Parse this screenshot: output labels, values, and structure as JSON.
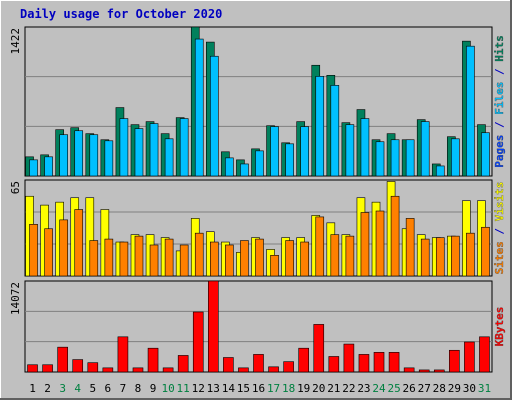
{
  "chart_data": [
    {
      "type": "bar",
      "title": "Daily usage for October 2020",
      "ylim": [
        0,
        1422
      ],
      "yticks": [
        1422
      ],
      "legend_only": [
        {
          "name": "Pages",
          "color": "#0040ff"
        }
      ],
      "legend_separator": "/",
      "series": [
        {
          "name": "Files",
          "color": "#00c0ff",
          "values": [
            154,
            183,
            394,
            432,
            394,
            336,
            548,
            452,
            500,
            355,
            548,
            1307,
            1143,
            173,
            115,
            240,
            471,
            307,
            471,
            951,
            865,
            490,
            548,
            327,
            346,
            346,
            519,
            96,
            355,
            1239,
            413
          ]
        },
        {
          "name": "Hits",
          "color": "#00805c",
          "values": [
            183,
            202,
            442,
            461,
            404,
            346,
            653,
            490,
            519,
            404,
            557,
            1422,
            1278,
            231,
            154,
            259,
            480,
            317,
            519,
            1057,
            961,
            509,
            634,
            346,
            404,
            346,
            538,
            115,
            375,
            1287,
            490
          ]
        }
      ]
    },
    {
      "type": "bar",
      "ylim": [
        0,
        65
      ],
      "yticks": [
        65
      ],
      "legend_separator": "/",
      "series": [
        {
          "name": "Sites",
          "color": "#ff8000",
          "values": [
            35,
            32,
            38,
            45,
            24,
            25,
            23,
            27,
            21,
            25,
            21,
            29,
            23,
            21,
            24,
            25,
            14,
            24,
            23,
            40,
            28,
            27,
            43,
            44,
            54,
            39,
            25,
            26,
            27,
            29,
            33
          ]
        },
        {
          "name": "Visits",
          "color": "#ffff00",
          "values": [
            54,
            48,
            50,
            53,
            53,
            45,
            23,
            28,
            28,
            26,
            17,
            39,
            30,
            23,
            16,
            26,
            18,
            26,
            26,
            41,
            36,
            28,
            53,
            50,
            64,
            32,
            28,
            26,
            27,
            51,
            51
          ]
        }
      ]
    },
    {
      "type": "bar",
      "ylim": [
        0,
        14072
      ],
      "yticks": [
        14072
      ],
      "categories": [
        "1",
        "2",
        "3",
        "4",
        "5",
        "6",
        "7",
        "8",
        "9",
        "10",
        "11",
        "12",
        "13",
        "14",
        "15",
        "16",
        "17",
        "18",
        "19",
        "20",
        "21",
        "22",
        "23",
        "24",
        "25",
        "26",
        "27",
        "28",
        "29",
        "30",
        "31"
      ],
      "highlight_indices": [
        2,
        3,
        9,
        10,
        16,
        17,
        23,
        24,
        30
      ],
      "highlight_color": "#008040",
      "series": [
        {
          "name": "KBytes",
          "color": "#ff0000",
          "values": [
            1120,
            1120,
            3840,
            1920,
            1440,
            640,
            5440,
            640,
            3680,
            640,
            2560,
            9280,
            14072,
            2240,
            640,
            2720,
            800,
            1600,
            3680,
            7360,
            2400,
            4320,
            2720,
            3040,
            3040,
            640,
            320,
            320,
            3360,
            4640,
            5440
          ]
        }
      ]
    }
  ]
}
